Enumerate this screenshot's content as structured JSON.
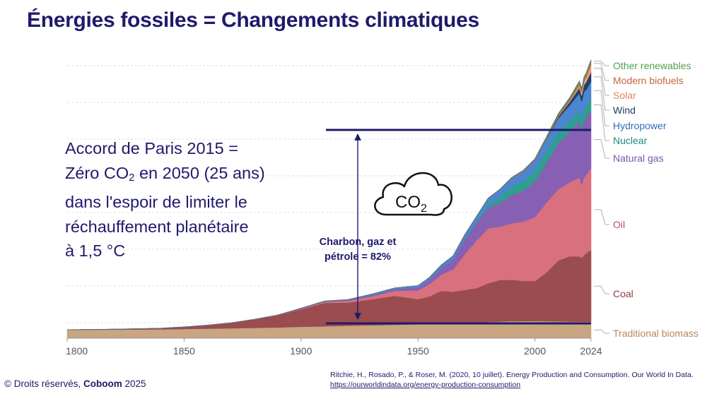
{
  "title": "Énergies fossiles = Changements climatiques",
  "paris_text": {
    "line1": "Accord de Paris 2015 =",
    "line2_prefix": "Zéro CO",
    "line2_sub": "2",
    "line2_suffix": " en 2050 (25 ans)",
    "line3": "dans l'espoir de limiter le",
    "line4": "réchauffement planétaire",
    "line5": "à 1,5 °C"
  },
  "cloud": {
    "label": "CO",
    "sub": "2"
  },
  "fossil_share": {
    "line1": "Charbon, gaz et",
    "line2": "pétrole = 82%"
  },
  "footer": {
    "copyright_prefix": "© Droits réservés, ",
    "copyright_brand": "Coboom",
    "copyright_year": " 2025",
    "citation_text": "Ritchie, H., Rosado, P., & Roser, M. (2020, 10 juillet). Energy Production and Consumption. Our World In Data. ",
    "citation_link": "https://ourworldindata.org/energy-production-consumption"
  },
  "colors": {
    "title": "#1f1a6b",
    "annotation_line": "#1f1a6b"
  },
  "chart_data": {
    "type": "area",
    "stacked": true,
    "x_ticks": [
      1800,
      1850,
      1900,
      1950,
      2000,
      2024
    ],
    "xlim": [
      1800,
      2024
    ],
    "ylim": [
      0,
      185000
    ],
    "grid": true,
    "legend_position": "right",
    "x": [
      1800,
      1820,
      1840,
      1850,
      1860,
      1870,
      1880,
      1890,
      1900,
      1910,
      1920,
      1930,
      1940,
      1950,
      1955,
      1960,
      1965,
      1970,
      1975,
      1980,
      1985,
      1990,
      1995,
      2000,
      2005,
      2010,
      2015,
      2019,
      2020,
      2021,
      2022,
      2023,
      2024
    ],
    "series": [
      {
        "name": "Traditional biomass",
        "color": "#c9a582",
        "text_color": "#b8875f",
        "values": [
          5600,
          5800,
          6000,
          6200,
          6400,
          6700,
          7000,
          7300,
          7700,
          8000,
          8400,
          8700,
          9100,
          9400,
          9700,
          10000,
          10300,
          10500,
          10700,
          11000,
          11200,
          11400,
          11500,
          11500,
          11400,
          11300,
          11200,
          11100,
          11100,
          11100,
          11100,
          11100,
          11100
        ]
      },
      {
        "name": "Coal",
        "color": "#9a4c4f",
        "text_color": "#8e3f44",
        "values": [
          97,
          300,
          700,
          1400,
          2400,
          3600,
          5600,
          8100,
          11800,
          15800,
          15500,
          17400,
          19500,
          16900,
          18500,
          21900,
          21000,
          22000,
          23000,
          26000,
          28000,
          28000,
          27000,
          27000,
          33000,
          41000,
          44000,
          44000,
          43000,
          45000,
          46000,
          47500,
          48000
        ]
      },
      {
        "name": "Oil",
        "color": "#d9707d",
        "text_color": "#c24e61",
        "values": [
          0,
          0,
          0,
          0,
          0,
          10,
          50,
          150,
          400,
          700,
          1200,
          2000,
          3300,
          5900,
          8300,
          11000,
          15000,
          24000,
          32000,
          37000,
          36000,
          38000,
          40000,
          43000,
          47000,
          48000,
          50000,
          53000,
          49000,
          52000,
          53000,
          54000,
          55000
        ]
      },
      {
        "name": "Natural gas",
        "color": "#8860b3",
        "text_color": "#7a55a8",
        "values": [
          0,
          0,
          0,
          0,
          0,
          10,
          30,
          60,
          200,
          300,
          500,
          800,
          1000,
          2000,
          3000,
          4500,
          6500,
          10000,
          12000,
          14000,
          16000,
          19000,
          21000,
          24000,
          27000,
          31000,
          34000,
          38000,
          37000,
          39000,
          38500,
          39000,
          39500
        ]
      },
      {
        "name": "Nuclear",
        "color": "#2e9e8e",
        "text_color": "#1c8a7a",
        "values": [
          0,
          0,
          0,
          0,
          0,
          0,
          0,
          0,
          0,
          0,
          0,
          0,
          0,
          0,
          0,
          10,
          100,
          200,
          800,
          1900,
          3800,
          5500,
          6300,
          7000,
          7500,
          7300,
          7000,
          7300,
          7000,
          7200,
          7000,
          7100,
          7200
        ]
      },
      {
        "name": "Hydropower",
        "color": "#4b86cf",
        "text_color": "#2e6fb8",
        "values": [
          0,
          0,
          0,
          0,
          0,
          0,
          0,
          0,
          100,
          200,
          400,
          700,
          900,
          1200,
          1600,
          2000,
          2500,
          3000,
          3500,
          4300,
          5000,
          5700,
          6600,
          7300,
          8200,
          9600,
          10900,
          11700,
          12100,
          11800,
          11900,
          11700,
          12000
        ]
      },
      {
        "name": "Wind",
        "color": "#1e3f66",
        "text_color": "#1e3f66",
        "values": [
          0,
          0,
          0,
          0,
          0,
          0,
          0,
          0,
          0,
          0,
          0,
          0,
          0,
          0,
          0,
          0,
          0,
          0,
          0,
          0,
          0,
          0,
          0,
          100,
          300,
          900,
          2200,
          3600,
          4000,
          4500,
          5200,
          5800,
          6400
        ]
      },
      {
        "name": "Solar",
        "color": "#ef9a7a",
        "text_color": "#e7825f",
        "values": [
          0,
          0,
          0,
          0,
          0,
          0,
          0,
          0,
          0,
          0,
          0,
          0,
          0,
          0,
          0,
          0,
          0,
          0,
          0,
          0,
          0,
          0,
          0,
          10,
          30,
          100,
          700,
          1800,
          2200,
          2600,
          3300,
          4200,
          5200
        ]
      },
      {
        "name": "Modern biofuels",
        "color": "#c5643b",
        "text_color": "#c5643b",
        "values": [
          0,
          0,
          0,
          0,
          0,
          0,
          0,
          0,
          0,
          0,
          0,
          0,
          0,
          0,
          0,
          0,
          0,
          0,
          0,
          0,
          100,
          200,
          300,
          300,
          500,
          1000,
          1100,
          1200,
          1200,
          1300,
          1300,
          1400,
          1400
        ]
      },
      {
        "name": "Other renewables",
        "color": "#52a04c",
        "text_color": "#52a04c",
        "values": [
          0,
          0,
          0,
          0,
          0,
          0,
          0,
          0,
          0,
          0,
          0,
          0,
          0,
          0,
          0,
          0,
          0,
          0,
          0,
          100,
          200,
          300,
          400,
          600,
          800,
          1000,
          1200,
          1400,
          1400,
          1500,
          1500,
          1600,
          1600
        ]
      }
    ]
  }
}
